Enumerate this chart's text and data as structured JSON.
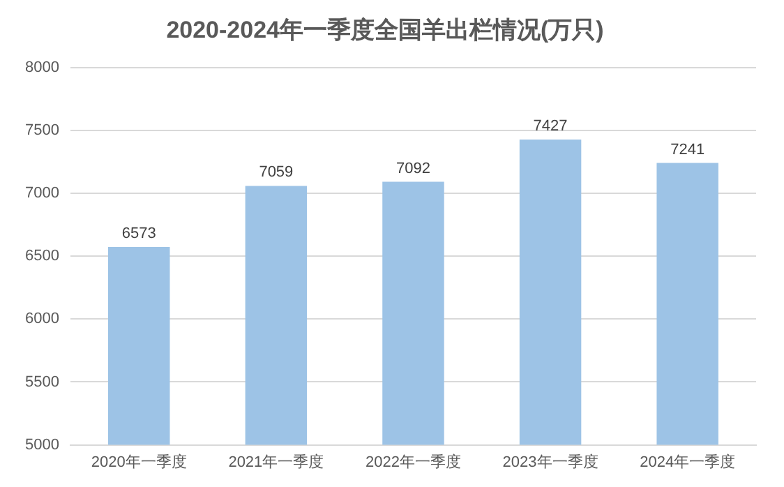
{
  "chart_data": {
    "type": "bar",
    "title": "2020-2024年一季度全国羊出栏情况(万只)",
    "categories": [
      "2020年一季度",
      "2021年一季度",
      "2022年一季度",
      "2023年一季度",
      "2024年一季度"
    ],
    "values": [
      6573,
      7059,
      7092,
      7427,
      7241
    ],
    "color": "#9dc3e6",
    "ylim": [
      5000,
      8000
    ],
    "yticks": [
      5000,
      5500,
      6000,
      6500,
      7000,
      7500,
      8000
    ],
    "grid": "y",
    "data_labels": true,
    "legend": false
  }
}
